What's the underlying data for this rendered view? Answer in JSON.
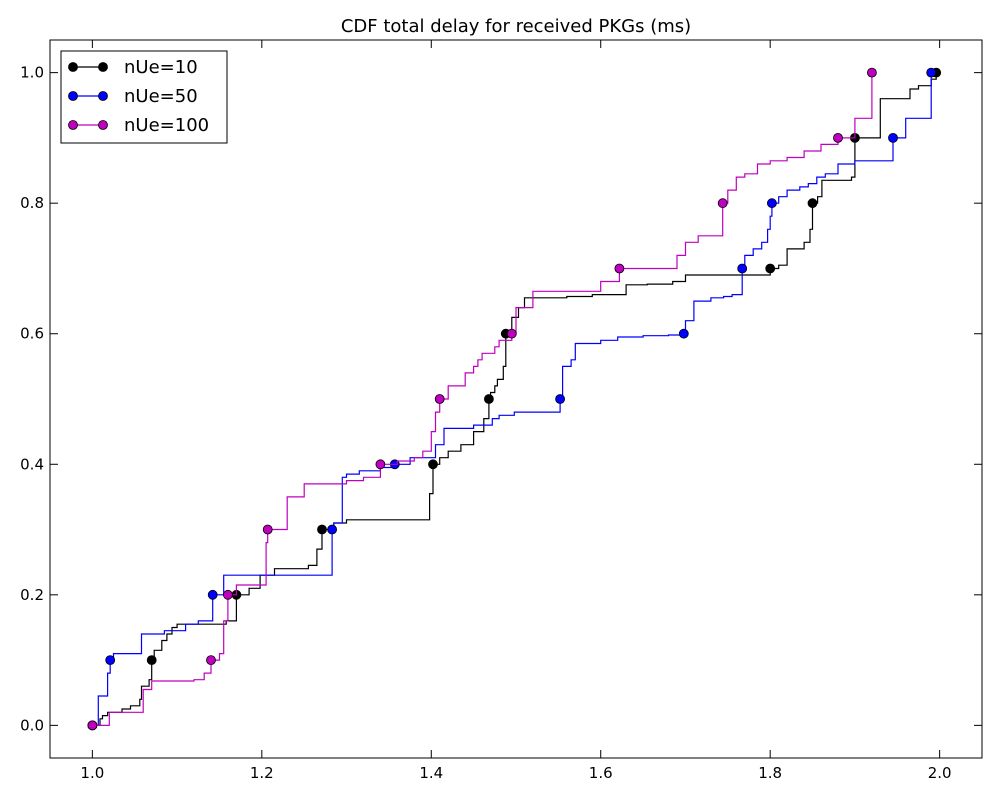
{
  "chart_data": {
    "type": "line",
    "title": "CDF total delay for received PKGs (ms)",
    "xlabel": "",
    "ylabel": "",
    "xlim": [
      0.95,
      2.05
    ],
    "ylim": [
      -0.05,
      1.05
    ],
    "xticks": [
      "1.0",
      "1.2",
      "1.4",
      "1.6",
      "1.8",
      "2.0"
    ],
    "yticks": [
      "0.0",
      "0.2",
      "0.4",
      "0.6",
      "0.8",
      "1.0"
    ],
    "grid": false,
    "legend_position": "top-left",
    "step": true,
    "series": [
      {
        "name": "nUe=10",
        "color": "#000000",
        "x": [
          1.0,
          1.005,
          1.009,
          1.012,
          1.018,
          1.035,
          1.045,
          1.056,
          1.058,
          1.067,
          1.07,
          1.073,
          1.082,
          1.088,
          1.094,
          1.1,
          1.115,
          1.13,
          1.142,
          1.158,
          1.17,
          1.185,
          1.198,
          1.215,
          1.24,
          1.255,
          1.265,
          1.271,
          1.28,
          1.285,
          1.3,
          1.33,
          1.378,
          1.398,
          1.402,
          1.41,
          1.42,
          1.435,
          1.45,
          1.462,
          1.468,
          1.47,
          1.475,
          1.478,
          1.485,
          1.488,
          1.495,
          1.503,
          1.51,
          1.53,
          1.56,
          1.59,
          1.605,
          1.63,
          1.655,
          1.685,
          1.7,
          1.72,
          1.75,
          1.8,
          1.802,
          1.81,
          1.82,
          1.84,
          1.847,
          1.85,
          1.856,
          1.861,
          1.896,
          1.9,
          1.93,
          1.955,
          1.965,
          1.975,
          1.99,
          1.996,
          2.0
        ],
        "y": [
          0.0,
          0.0,
          0.01,
          0.015,
          0.02,
          0.025,
          0.03,
          0.04,
          0.06,
          0.07,
          0.1,
          0.115,
          0.13,
          0.14,
          0.15,
          0.155,
          0.155,
          0.155,
          0.155,
          0.16,
          0.2,
          0.21,
          0.23,
          0.24,
          0.24,
          0.245,
          0.27,
          0.3,
          0.3,
          0.31,
          0.315,
          0.315,
          0.315,
          0.355,
          0.4,
          0.41,
          0.42,
          0.43,
          0.45,
          0.47,
          0.5,
          0.51,
          0.52,
          0.53,
          0.55,
          0.6,
          0.625,
          0.64,
          0.655,
          0.655,
          0.657,
          0.66,
          0.66,
          0.675,
          0.676,
          0.68,
          0.69,
          0.69,
          0.69,
          0.7,
          0.7,
          0.705,
          0.73,
          0.74,
          0.76,
          0.8,
          0.81,
          0.835,
          0.84,
          0.9,
          0.96,
          0.96,
          0.975,
          0.98,
          0.99,
          1.0,
          1.0
        ]
      },
      {
        "name": "nUe=50",
        "color": "#0000ff",
        "x": [
          1.0,
          1.0,
          1.007,
          1.018,
          1.021,
          1.025,
          1.058,
          1.075,
          1.085,
          1.11,
          1.125,
          1.142,
          1.155,
          1.185,
          1.265,
          1.283,
          1.285,
          1.295,
          1.3,
          1.315,
          1.34,
          1.357,
          1.37,
          1.375,
          1.405,
          1.415,
          1.45,
          1.472,
          1.48,
          1.498,
          1.53,
          1.552,
          1.555,
          1.565,
          1.57,
          1.6,
          1.62,
          1.65,
          1.68,
          1.698,
          1.7,
          1.71,
          1.73,
          1.745,
          1.755,
          1.767,
          1.77,
          1.78,
          1.79,
          1.797,
          1.8,
          1.802,
          1.81,
          1.82,
          1.835,
          1.845,
          1.855,
          1.865,
          1.88,
          1.9,
          1.94,
          1.945,
          1.96,
          1.975,
          1.985,
          1.99
        ],
        "y": [
          0.0,
          0.0,
          0.045,
          0.08,
          0.1,
          0.11,
          0.14,
          0.14,
          0.145,
          0.155,
          0.16,
          0.2,
          0.23,
          0.23,
          0.23,
          0.3,
          0.31,
          0.38,
          0.385,
          0.39,
          0.395,
          0.4,
          0.4,
          0.41,
          0.43,
          0.455,
          0.46,
          0.47,
          0.475,
          0.48,
          0.48,
          0.5,
          0.55,
          0.56,
          0.585,
          0.59,
          0.595,
          0.597,
          0.598,
          0.6,
          0.62,
          0.65,
          0.655,
          0.657,
          0.66,
          0.7,
          0.72,
          0.73,
          0.74,
          0.76,
          0.78,
          0.8,
          0.81,
          0.82,
          0.825,
          0.83,
          0.84,
          0.845,
          0.86,
          0.865,
          0.865,
          0.9,
          0.93,
          0.93,
          0.93,
          1.0
        ]
      },
      {
        "name": "nUe=100",
        "color": "#bf00bf",
        "x": [
          1.0,
          1.015,
          1.02,
          1.06,
          1.07,
          1.12,
          1.132,
          1.14,
          1.15,
          1.155,
          1.16,
          1.17,
          1.2,
          1.205,
          1.207,
          1.23,
          1.25,
          1.3,
          1.32,
          1.34,
          1.36,
          1.38,
          1.39,
          1.4,
          1.405,
          1.41,
          1.42,
          1.44,
          1.45,
          1.455,
          1.46,
          1.475,
          1.48,
          1.495,
          1.5,
          1.52,
          1.54,
          1.56,
          1.58,
          1.6,
          1.622,
          1.65,
          1.68,
          1.69,
          1.7,
          1.715,
          1.72,
          1.744,
          1.75,
          1.76,
          1.77,
          1.785,
          1.8,
          1.82,
          1.84,
          1.86,
          1.88,
          1.89,
          1.9,
          1.92
        ],
        "y": [
          0.0,
          0.0,
          0.02,
          0.055,
          0.068,
          0.07,
          0.08,
          0.1,
          0.11,
          0.16,
          0.2,
          0.215,
          0.215,
          0.28,
          0.3,
          0.35,
          0.37,
          0.375,
          0.38,
          0.4,
          0.405,
          0.41,
          0.42,
          0.45,
          0.48,
          0.5,
          0.52,
          0.54,
          0.55,
          0.56,
          0.57,
          0.58,
          0.59,
          0.6,
          0.64,
          0.665,
          0.665,
          0.665,
          0.665,
          0.68,
          0.7,
          0.7,
          0.7,
          0.72,
          0.74,
          0.75,
          0.75,
          0.8,
          0.82,
          0.84,
          0.845,
          0.86,
          0.865,
          0.87,
          0.88,
          0.89,
          0.9,
          0.9,
          0.93,
          1.0
        ]
      }
    ]
  }
}
